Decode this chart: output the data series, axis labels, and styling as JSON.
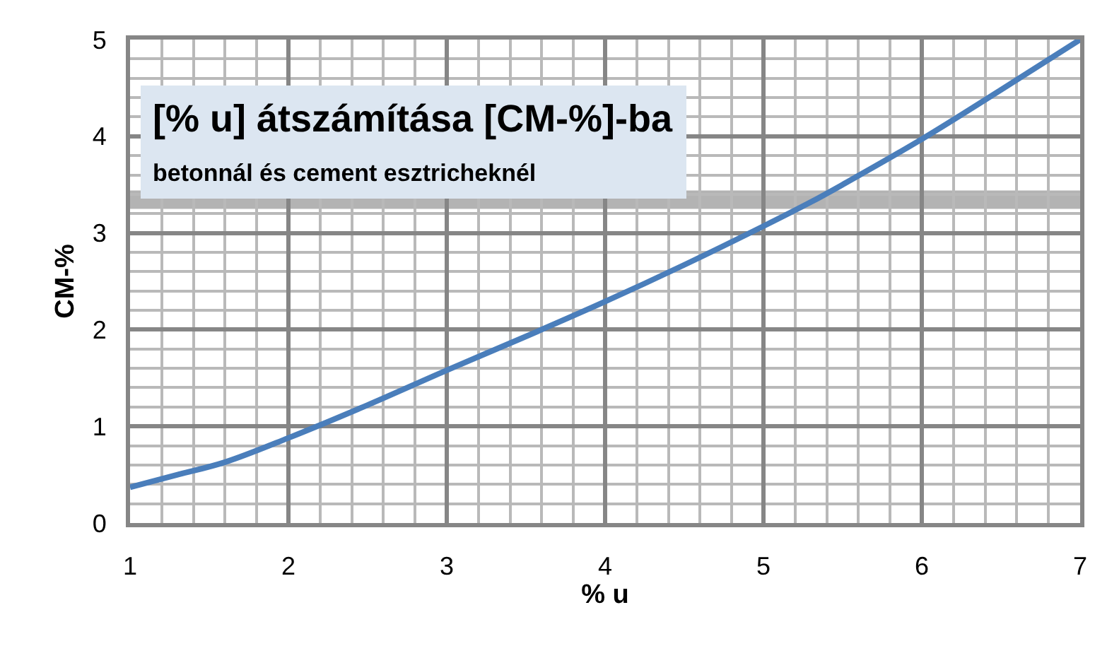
{
  "chart_data": {
    "type": "line",
    "title": "[% u] átszámítása [CM-%]-ba",
    "subtitle": "betonnál és cement esztricheknél",
    "xlabel": "% u",
    "ylabel": "CM-%",
    "x": [
      1,
      1.3,
      1.6,
      2,
      2.5,
      3,
      3.5,
      4,
      4.5,
      5,
      5.3,
      5.5,
      6,
      6.5,
      7
    ],
    "series": [
      {
        "color": "#4a7ebb",
        "values": [
          0.37,
          0.5,
          0.63,
          0.88,
          1.22,
          1.58,
          1.93,
          2.29,
          2.67,
          3.07,
          3.32,
          3.5,
          3.97,
          4.48,
          5.0
        ]
      }
    ],
    "xlim": [
      1,
      7
    ],
    "xticks": [
      1,
      2,
      3,
      4,
      5,
      6,
      7
    ],
    "ylim": [
      0,
      5
    ],
    "yticks": [
      0,
      1,
      2,
      3,
      4,
      5
    ],
    "bands": [
      {
        "axis": "y",
        "from": 3.25,
        "to": 3.44,
        "color": "#b3b3b3"
      }
    ],
    "grid": true,
    "marker": "none",
    "line_style": "solid"
  }
}
